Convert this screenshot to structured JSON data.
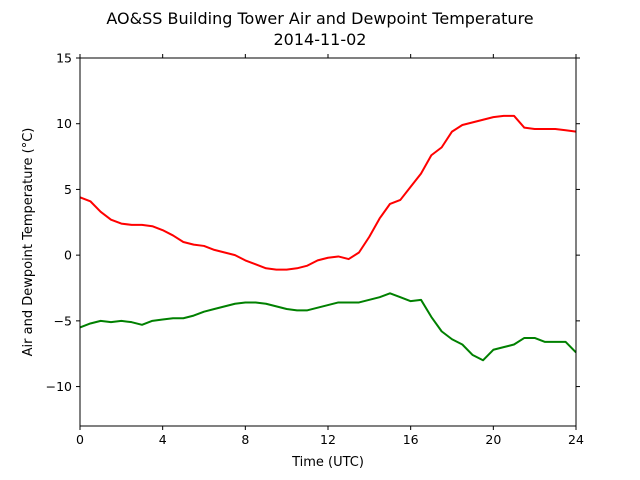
{
  "chart_data": {
    "type": "line",
    "title": "AO&SS Building Tower Air and Dewpoint Temperature",
    "subtitle": "2014-11-02",
    "xlabel": "Time (UTC)",
    "ylabel": "Air and Dewpoint Temperature (°C)",
    "xlim": [
      0,
      24
    ],
    "ylim": [
      -13,
      15
    ],
    "xticks": [
      0,
      4,
      8,
      12,
      16,
      20,
      24
    ],
    "yticks": [
      -10,
      -5,
      0,
      5,
      10,
      15
    ],
    "grid": false,
    "series": [
      {
        "color": "#ff0000",
        "x": [
          0,
          0.5,
          1,
          1.5,
          2,
          2.5,
          3,
          3.5,
          4,
          4.5,
          5,
          5.5,
          6,
          6.5,
          7,
          7.5,
          8,
          8.5,
          9,
          9.5,
          10,
          10.5,
          11,
          11.5,
          12,
          12.5,
          13,
          13.5,
          14,
          14.5,
          15,
          15.5,
          16,
          16.5,
          17,
          17.5,
          18,
          18.5,
          19,
          19.5,
          20,
          20.5,
          21,
          21.5,
          22,
          22.5,
          23,
          23.5,
          24
        ],
        "y": [
          4.4,
          4.1,
          3.3,
          2.7,
          2.4,
          2.3,
          2.3,
          2.2,
          1.9,
          1.5,
          1.0,
          0.8,
          0.7,
          0.4,
          0.2,
          0.0,
          -0.4,
          -0.7,
          -1.0,
          -1.1,
          -1.1,
          -1.0,
          -0.8,
          -0.4,
          -0.2,
          -0.1,
          -0.3,
          0.2,
          1.4,
          2.8,
          3.9,
          4.2,
          5.2,
          6.2,
          7.6,
          8.2,
          9.4,
          9.9,
          10.1,
          10.3,
          10.5,
          10.6,
          10.6,
          9.7,
          9.6,
          9.6,
          9.6,
          9.5,
          9.4
        ]
      },
      {
        "color": "#008000",
        "x": [
          0,
          0.5,
          1,
          1.5,
          2,
          2.5,
          3,
          3.5,
          4,
          4.5,
          5,
          5.5,
          6,
          6.5,
          7,
          7.5,
          8,
          8.5,
          9,
          9.5,
          10,
          10.5,
          11,
          11.5,
          12,
          12.5,
          13,
          13.5,
          14,
          14.5,
          15,
          15.5,
          16,
          16.5,
          17,
          17.5,
          18,
          18.5,
          19,
          19.5,
          20,
          20.5,
          21,
          21.5,
          22,
          22.5,
          23,
          23.5,
          24
        ],
        "y": [
          -5.5,
          -5.2,
          -5.0,
          -5.1,
          -5.0,
          -5.1,
          -5.3,
          -5.0,
          -4.9,
          -4.8,
          -4.8,
          -4.6,
          -4.3,
          -4.1,
          -3.9,
          -3.7,
          -3.6,
          -3.6,
          -3.7,
          -3.9,
          -4.1,
          -4.2,
          -4.2,
          -4.0,
          -3.8,
          -3.6,
          -3.6,
          -3.6,
          -3.4,
          -3.2,
          -2.9,
          -3.2,
          -3.5,
          -3.4,
          -4.7,
          -5.8,
          -6.4,
          -6.8,
          -7.6,
          -8.0,
          -7.2,
          -7.0,
          -6.8,
          -6.3,
          -6.3,
          -6.6,
          -6.6,
          -6.6,
          -7.4
        ]
      }
    ]
  }
}
